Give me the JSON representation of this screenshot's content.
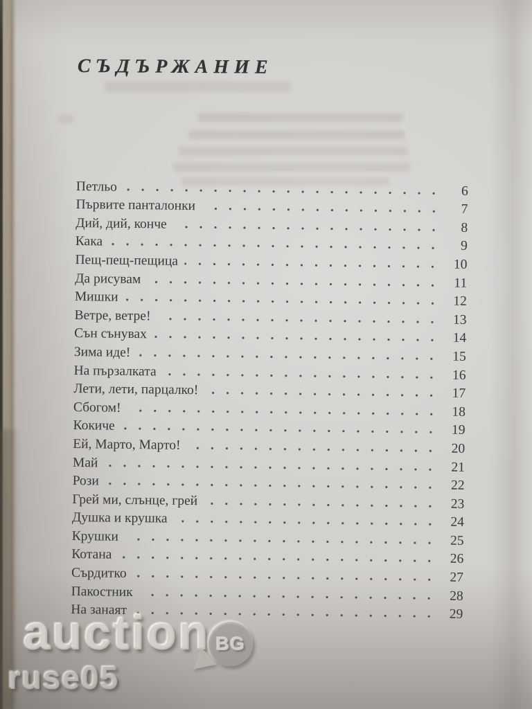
{
  "page": {
    "title": "СЪДЪРЖАНИЕ"
  },
  "toc": {
    "entries": [
      {
        "title": "Петльо",
        "page": "6"
      },
      {
        "title": "Първите панталонки",
        "page": "7"
      },
      {
        "title": "Дий, дий, конче",
        "page": "8"
      },
      {
        "title": "Кака",
        "page": "9"
      },
      {
        "title": "Пещ-пещ-пещица",
        "page": "10"
      },
      {
        "title": "Да рисувам",
        "page": "11"
      },
      {
        "title": "Мишки",
        "page": "12"
      },
      {
        "title": "Ветре, ветре!",
        "page": "13"
      },
      {
        "title": "Сън сънувах",
        "page": "14"
      },
      {
        "title": "Зима иде!",
        "page": "15"
      },
      {
        "title": "На пързалката",
        "page": "16"
      },
      {
        "title": "Лети, лети, парцалко!",
        "page": "17"
      },
      {
        "title": "Сбогом!",
        "page": "18"
      },
      {
        "title": "Кокиче",
        "page": "19"
      },
      {
        "title": "Ей, Марто, Марто!",
        "page": "20"
      },
      {
        "title": "Май",
        "page": "21"
      },
      {
        "title": "Рози",
        "page": "22"
      },
      {
        "title": "Грей ми, слънце, грей",
        "page": "23"
      },
      {
        "title": "Душка и крушка",
        "page": "24"
      },
      {
        "title": "Крушки",
        "page": "25"
      },
      {
        "title": "Котана",
        "page": "26"
      },
      {
        "title": "Сърдитко",
        "page": "27"
      },
      {
        "title": "Пакостник",
        "page": "28"
      },
      {
        "title": "На занаят",
        "page": "29"
      }
    ]
  },
  "watermark": {
    "brand": "auction",
    "badge": "BG",
    "username": "ruse05"
  },
  "colors": {
    "paper": "#d3d1ce",
    "ink": "#39393c",
    "book_edge_tan": "#b0a492",
    "book_edge_dark": "#2b2723",
    "watermark_gray": "#cdc9c3"
  }
}
